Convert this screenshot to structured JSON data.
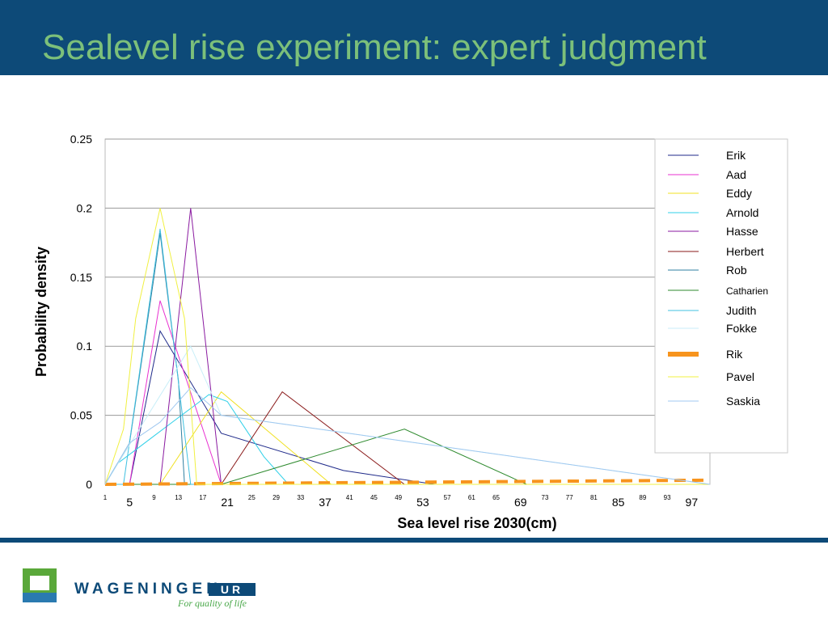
{
  "slide": {
    "title": "Sealevel rise experiment: expert judgment",
    "brand": {
      "name": "WAGENINGEN",
      "box": "UR",
      "tagline": "For quality of life"
    }
  },
  "colors": {
    "header": "#0d4a78",
    "title": "#7cc07a",
    "brand": "#0d4a78",
    "tagline": "#4aa84a"
  },
  "chart_data": {
    "type": "line",
    "xlabel": "Sea level rise 2030(cm)",
    "ylabel": "Probability density",
    "ylim": [
      0,
      0.25
    ],
    "xlim": [
      1,
      100
    ],
    "yticks": [
      "0",
      "0.05",
      "0.1",
      "0.15",
      "0.2",
      "0.25"
    ],
    "xticks_small": [
      "1",
      "9",
      "13",
      "17",
      "25",
      "29",
      "33",
      "41",
      "45",
      "49",
      "57",
      "61",
      "65",
      "73",
      "77",
      "81",
      "89",
      "93"
    ],
    "xticks_large": [
      "5",
      "21",
      "37",
      "53",
      "69",
      "85",
      "97"
    ],
    "grid": "horizontal",
    "legend": "right",
    "series": [
      {
        "name": "Erik",
        "color": "#1f2a8a",
        "x": [
          1,
          5,
          10,
          20,
          40,
          55,
          100
        ],
        "y": [
          0,
          0,
          0.111,
          0.037,
          0.01,
          0,
          0
        ]
      },
      {
        "name": "Aad",
        "color": "#e830d0",
        "x": [
          1,
          5,
          10,
          20,
          100
        ],
        "y": [
          0,
          0,
          0.133,
          0,
          0
        ]
      },
      {
        "name": "Eddy",
        "color": "#f0e020",
        "x": [
          1,
          10,
          20,
          38,
          100
        ],
        "y": [
          0,
          0,
          0.067,
          0,
          0
        ]
      },
      {
        "name": "Arnold",
        "color": "#30d0e8",
        "x": [
          1,
          3,
          6,
          9,
          12,
          15,
          18,
          21,
          24,
          27,
          31,
          100
        ],
        "y": [
          0,
          0.015,
          0.025,
          0.035,
          0.045,
          0.055,
          0.065,
          0.06,
          0.04,
          0.02,
          0,
          0
        ]
      },
      {
        "name": "Hasse",
        "color": "#8a1aa0",
        "x": [
          1,
          10,
          15,
          20,
          100
        ],
        "y": [
          0,
          0,
          0.2,
          0,
          0
        ]
      },
      {
        "name": "Herbert",
        "color": "#8a1a1a",
        "x": [
          1,
          20,
          30,
          50,
          100
        ],
        "y": [
          0,
          0,
          0.067,
          0,
          0
        ]
      },
      {
        "name": "Rob",
        "color": "#2f7fa0",
        "x": [
          1,
          5,
          7,
          9,
          10,
          11,
          12,
          13,
          14,
          100
        ],
        "y": [
          0,
          0.03,
          0.09,
          0.15,
          0.182,
          0.145,
          0.11,
          0.075,
          0,
          0
        ]
      },
      {
        "name": "Catharien",
        "color": "#2e8a2e",
        "x": [
          1,
          20,
          50,
          70,
          100
        ],
        "y": [
          0,
          0,
          0.04,
          0,
          0
        ]
      },
      {
        "name": "Judith",
        "color": "#40c0e0",
        "x": [
          1,
          4,
          10,
          15,
          100
        ],
        "y": [
          0,
          0,
          0.185,
          0,
          0
        ]
      },
      {
        "name": "Fokke",
        "color": "#c8eef8",
        "x": [
          1,
          15,
          20,
          100
        ],
        "y": [
          0,
          0.1,
          0.05,
          0
        ]
      },
      {
        "name": "Rik",
        "color": "#f7941d",
        "x": [
          1,
          99
        ],
        "y": [
          0,
          0.003
        ]
      },
      {
        "name": "Pavel",
        "color": "#f0f040",
        "x": [
          1,
          4,
          6,
          8,
          10,
          12,
          14,
          16,
          100
        ],
        "y": [
          0,
          0.04,
          0.12,
          0.16,
          0.2,
          0.16,
          0.12,
          0,
          0
        ]
      },
      {
        "name": "Saskia",
        "color": "#a0c8f0",
        "x": [
          1,
          5,
          10,
          15,
          20,
          100
        ],
        "y": [
          0,
          0.03,
          0.045,
          0.07,
          0.05,
          0
        ]
      }
    ]
  }
}
